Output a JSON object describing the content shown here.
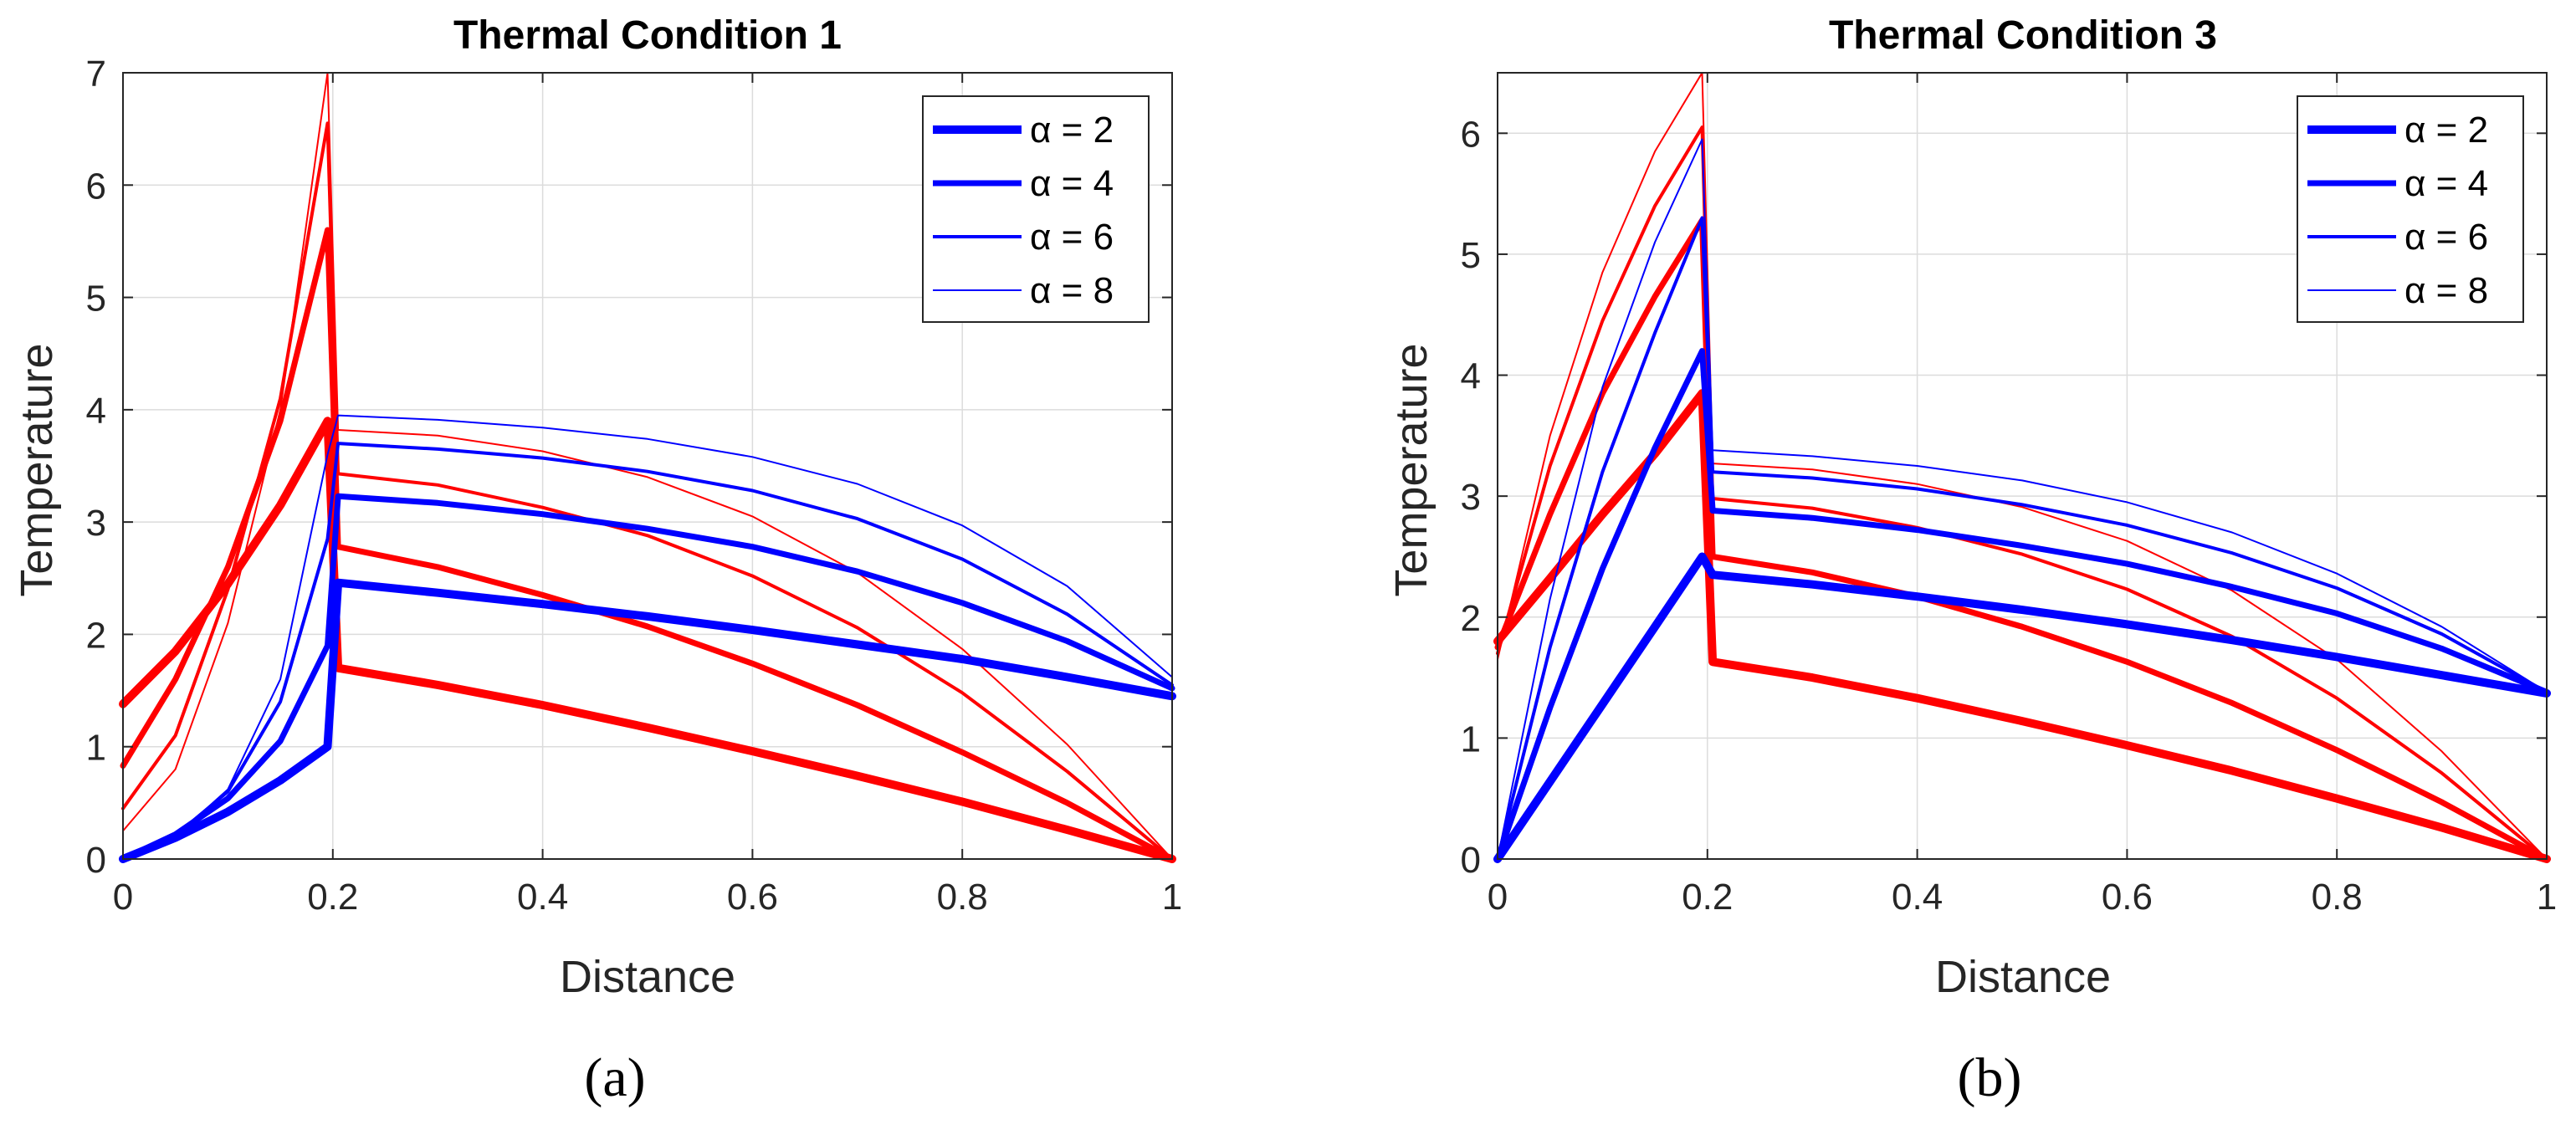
{
  "figure": {
    "panel_labels": [
      "(a)",
      "(b)"
    ]
  },
  "legend_entries": [
    "α = 2",
    "α = 4",
    "α = 6",
    "α = 8"
  ],
  "colors": {
    "red": "#ff0000",
    "blue": "#0000ff",
    "grid": "#dcdcdc",
    "axis": "#262626"
  },
  "chart_data": [
    {
      "type": "line",
      "title": "Thermal Condition 1",
      "xlabel": "Distance",
      "ylabel": "Temperature",
      "xlim": [
        0,
        1
      ],
      "ylim": [
        0,
        7
      ],
      "xticks": [
        0,
        0.2,
        0.4,
        0.6,
        0.8,
        1
      ],
      "xtick_labels": [
        "0",
        "0.2",
        "0.4",
        "0.6",
        "0.8",
        "1"
      ],
      "yticks": [
        0,
        1,
        2,
        3,
        4,
        5,
        6,
        7
      ],
      "ytick_labels": [
        "0",
        "1",
        "2",
        "3",
        "4",
        "5",
        "6",
        "7"
      ],
      "grid": true,
      "legend_position": "top-right",
      "legend": [
        "α = 2",
        "α = 4",
        "α = 6",
        "α = 8"
      ],
      "series": [
        {
          "name": "α = 2",
          "color": "red",
          "weight": 4,
          "x": [
            0,
            0.05,
            0.1,
            0.15,
            0.195,
            0.205,
            0.3,
            0.4,
            0.5,
            0.6,
            0.7,
            0.8,
            0.9,
            1.0
          ],
          "y": [
            1.38,
            1.85,
            2.45,
            3.15,
            3.9,
            1.7,
            1.55,
            1.37,
            1.17,
            0.96,
            0.74,
            0.51,
            0.26,
            0.0
          ]
        },
        {
          "name": "α = 4",
          "color": "red",
          "weight": 3,
          "x": [
            0,
            0.05,
            0.1,
            0.15,
            0.195,
            0.205,
            0.3,
            0.4,
            0.5,
            0.6,
            0.7,
            0.8,
            0.9,
            1.0
          ],
          "y": [
            0.83,
            1.6,
            2.6,
            3.9,
            5.6,
            2.78,
            2.6,
            2.35,
            2.07,
            1.74,
            1.37,
            0.95,
            0.5,
            0.0
          ]
        },
        {
          "name": "α = 6",
          "color": "red",
          "weight": 2,
          "x": [
            0,
            0.05,
            0.1,
            0.15,
            0.195,
            0.205,
            0.3,
            0.4,
            0.5,
            0.6,
            0.7,
            0.8,
            0.9,
            1.0
          ],
          "y": [
            0.45,
            1.1,
            2.4,
            4.1,
            6.55,
            3.43,
            3.33,
            3.13,
            2.88,
            2.52,
            2.06,
            1.48,
            0.78,
            0.0
          ]
        },
        {
          "name": "α = 8",
          "color": "red",
          "weight": 1,
          "x": [
            0,
            0.05,
            0.1,
            0.15,
            0.195,
            0.205,
            0.3,
            0.4,
            0.5,
            0.6,
            0.7,
            0.8,
            0.9,
            1.0
          ],
          "y": [
            0.25,
            0.8,
            2.1,
            4.0,
            7.0,
            3.82,
            3.77,
            3.63,
            3.4,
            3.05,
            2.55,
            1.87,
            1.02,
            0.0
          ]
        },
        {
          "name": "α = 2",
          "color": "blue",
          "weight": 4,
          "x": [
            0,
            0.05,
            0.1,
            0.15,
            0.195,
            0.205,
            0.3,
            0.4,
            0.5,
            0.6,
            0.7,
            0.8,
            0.9,
            1.0
          ],
          "y": [
            0.0,
            0.19,
            0.42,
            0.7,
            1.0,
            2.46,
            2.37,
            2.27,
            2.16,
            2.04,
            1.91,
            1.78,
            1.62,
            1.45
          ]
        },
        {
          "name": "α = 4",
          "color": "blue",
          "weight": 3,
          "x": [
            0,
            0.05,
            0.1,
            0.15,
            0.195,
            0.205,
            0.3,
            0.4,
            0.5,
            0.6,
            0.7,
            0.8,
            0.9,
            1.0
          ],
          "y": [
            0.0,
            0.22,
            0.54,
            1.05,
            1.9,
            3.23,
            3.17,
            3.07,
            2.94,
            2.78,
            2.56,
            2.28,
            1.94,
            1.52
          ]
        },
        {
          "name": "α = 6",
          "color": "blue",
          "weight": 2,
          "x": [
            0,
            0.05,
            0.1,
            0.15,
            0.195,
            0.205,
            0.3,
            0.4,
            0.5,
            0.6,
            0.7,
            0.8,
            0.9,
            1.0
          ],
          "y": [
            0.0,
            0.21,
            0.6,
            1.4,
            2.85,
            3.7,
            3.65,
            3.57,
            3.45,
            3.28,
            3.03,
            2.67,
            2.18,
            1.55
          ]
        },
        {
          "name": "α = 8",
          "color": "blue",
          "weight": 1,
          "x": [
            0,
            0.05,
            0.1,
            0.15,
            0.195,
            0.205,
            0.3,
            0.4,
            0.5,
            0.6,
            0.7,
            0.8,
            0.9,
            1.0
          ],
          "y": [
            0.0,
            0.2,
            0.62,
            1.6,
            3.6,
            3.95,
            3.91,
            3.84,
            3.74,
            3.58,
            3.34,
            2.97,
            2.43,
            1.62
          ]
        }
      ]
    },
    {
      "type": "line",
      "title": "Thermal Condition 3",
      "xlabel": "Distance",
      "ylabel": "Temperature",
      "xlim": [
        0,
        1
      ],
      "ylim": [
        0,
        6.5
      ],
      "xticks": [
        0,
        0.2,
        0.4,
        0.6,
        0.8,
        1
      ],
      "xtick_labels": [
        "0",
        "0.2",
        "0.4",
        "0.6",
        "0.8",
        "1"
      ],
      "yticks": [
        0,
        1,
        2,
        3,
        4,
        5,
        6
      ],
      "ytick_labels": [
        "0",
        "1",
        "2",
        "3",
        "4",
        "5",
        "6"
      ],
      "grid": true,
      "legend_position": "top-right",
      "legend": [
        "α = 2",
        "α = 4",
        "α = 6",
        "α = 8"
      ],
      "series": [
        {
          "name": "α = 2",
          "color": "red",
          "weight": 4,
          "x": [
            0,
            0.05,
            0.1,
            0.15,
            0.195,
            0.205,
            0.3,
            0.4,
            0.5,
            0.6,
            0.7,
            0.8,
            0.9,
            1.0
          ],
          "y": [
            1.8,
            2.32,
            2.85,
            3.35,
            3.85,
            1.63,
            1.5,
            1.33,
            1.14,
            0.94,
            0.73,
            0.5,
            0.26,
            0.0
          ]
        },
        {
          "name": "α = 4",
          "color": "red",
          "weight": 3,
          "x": [
            0,
            0.05,
            0.1,
            0.15,
            0.195,
            0.205,
            0.3,
            0.4,
            0.5,
            0.6,
            0.7,
            0.8,
            0.9,
            1.0
          ],
          "y": [
            1.75,
            2.85,
            3.85,
            4.65,
            5.28,
            2.5,
            2.37,
            2.17,
            1.92,
            1.63,
            1.29,
            0.9,
            0.47,
            0.0
          ]
        },
        {
          "name": "α = 6",
          "color": "red",
          "weight": 2,
          "x": [
            0,
            0.05,
            0.1,
            0.15,
            0.195,
            0.205,
            0.3,
            0.4,
            0.5,
            0.6,
            0.7,
            0.8,
            0.9,
            1.0
          ],
          "y": [
            1.7,
            3.25,
            4.45,
            5.4,
            6.05,
            2.98,
            2.9,
            2.74,
            2.52,
            2.23,
            1.84,
            1.33,
            0.71,
            0.0
          ]
        },
        {
          "name": "α = 8",
          "color": "red",
          "weight": 1,
          "x": [
            0,
            0.05,
            0.1,
            0.15,
            0.195,
            0.205,
            0.3,
            0.4,
            0.5,
            0.6,
            0.7,
            0.8,
            0.9,
            1.0
          ],
          "y": [
            1.65,
            3.5,
            4.85,
            5.85,
            6.5,
            3.27,
            3.22,
            3.1,
            2.91,
            2.63,
            2.22,
            1.65,
            0.89,
            0.0
          ]
        },
        {
          "name": "α = 2",
          "color": "blue",
          "weight": 4,
          "x": [
            0,
            0.05,
            0.1,
            0.15,
            0.195,
            0.205,
            0.3,
            0.4,
            0.5,
            0.6,
            0.7,
            0.8,
            0.9,
            1.0
          ],
          "y": [
            0.0,
            0.64,
            1.28,
            1.92,
            2.5,
            2.35,
            2.27,
            2.17,
            2.06,
            1.94,
            1.81,
            1.67,
            1.52,
            1.37
          ]
        },
        {
          "name": "α = 4",
          "color": "blue",
          "weight": 3,
          "x": [
            0,
            0.05,
            0.1,
            0.15,
            0.195,
            0.205,
            0.3,
            0.4,
            0.5,
            0.6,
            0.7,
            0.8,
            0.9,
            1.0
          ],
          "y": [
            0.0,
            1.25,
            2.4,
            3.4,
            4.2,
            2.88,
            2.82,
            2.72,
            2.59,
            2.44,
            2.25,
            2.03,
            1.74,
            1.38
          ]
        },
        {
          "name": "α = 6",
          "color": "blue",
          "weight": 2,
          "x": [
            0,
            0.05,
            0.1,
            0.15,
            0.195,
            0.205,
            0.3,
            0.4,
            0.5,
            0.6,
            0.7,
            0.8,
            0.9,
            1.0
          ],
          "y": [
            0.0,
            1.75,
            3.2,
            4.35,
            5.3,
            3.2,
            3.15,
            3.06,
            2.93,
            2.76,
            2.53,
            2.24,
            1.86,
            1.38
          ]
        },
        {
          "name": "α = 8",
          "color": "blue",
          "weight": 1,
          "x": [
            0,
            0.05,
            0.1,
            0.15,
            0.195,
            0.205,
            0.3,
            0.4,
            0.5,
            0.6,
            0.7,
            0.8,
            0.9,
            1.0
          ],
          "y": [
            0.0,
            2.15,
            3.9,
            5.1,
            5.95,
            3.38,
            3.33,
            3.25,
            3.13,
            2.95,
            2.7,
            2.36,
            1.92,
            1.38
          ]
        }
      ]
    }
  ]
}
